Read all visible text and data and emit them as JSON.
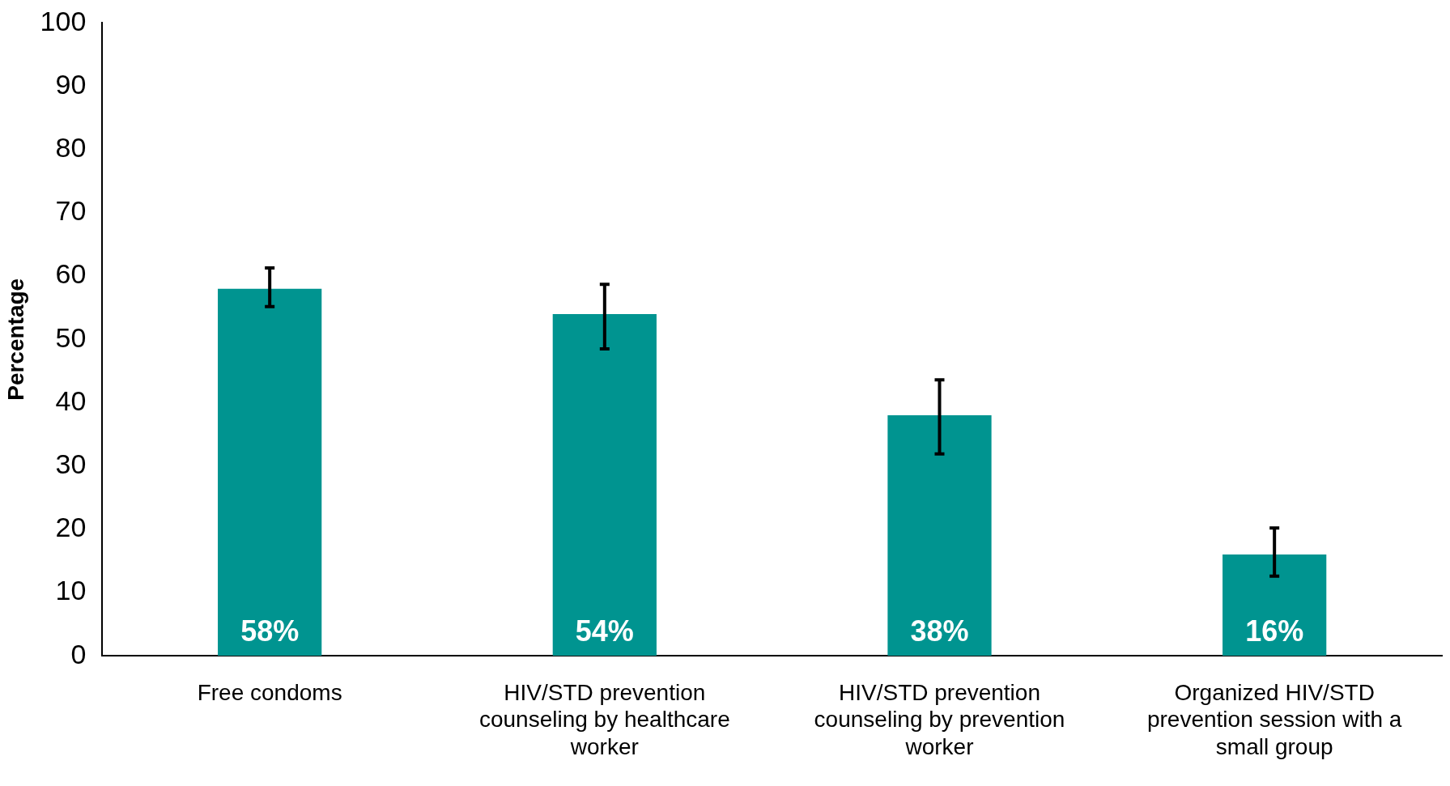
{
  "chart_data": {
    "type": "bar",
    "ylabel": "Percentage",
    "categories": [
      "Free condoms",
      "HIV/STD prevention counseling by healthcare worker",
      "HIV/STD prevention counseling by prevention worker",
      "Organized HIV/STD prevention session with a small group"
    ],
    "values": [
      58,
      54,
      38,
      16
    ],
    "value_labels": [
      "58%",
      "54%",
      "38%",
      "16%"
    ],
    "errors": [
      [
        55.2,
        61.3
      ],
      [
        48.5,
        58.7
      ],
      [
        31.9,
        43.6
      ],
      [
        12.6,
        20.2
      ]
    ],
    "color": "#009490",
    "ylim": [
      0,
      100
    ],
    "yticks": [
      0,
      10,
      20,
      30,
      40,
      50,
      60,
      70,
      80,
      90,
      100
    ],
    "grid": false,
    "legend": false
  }
}
